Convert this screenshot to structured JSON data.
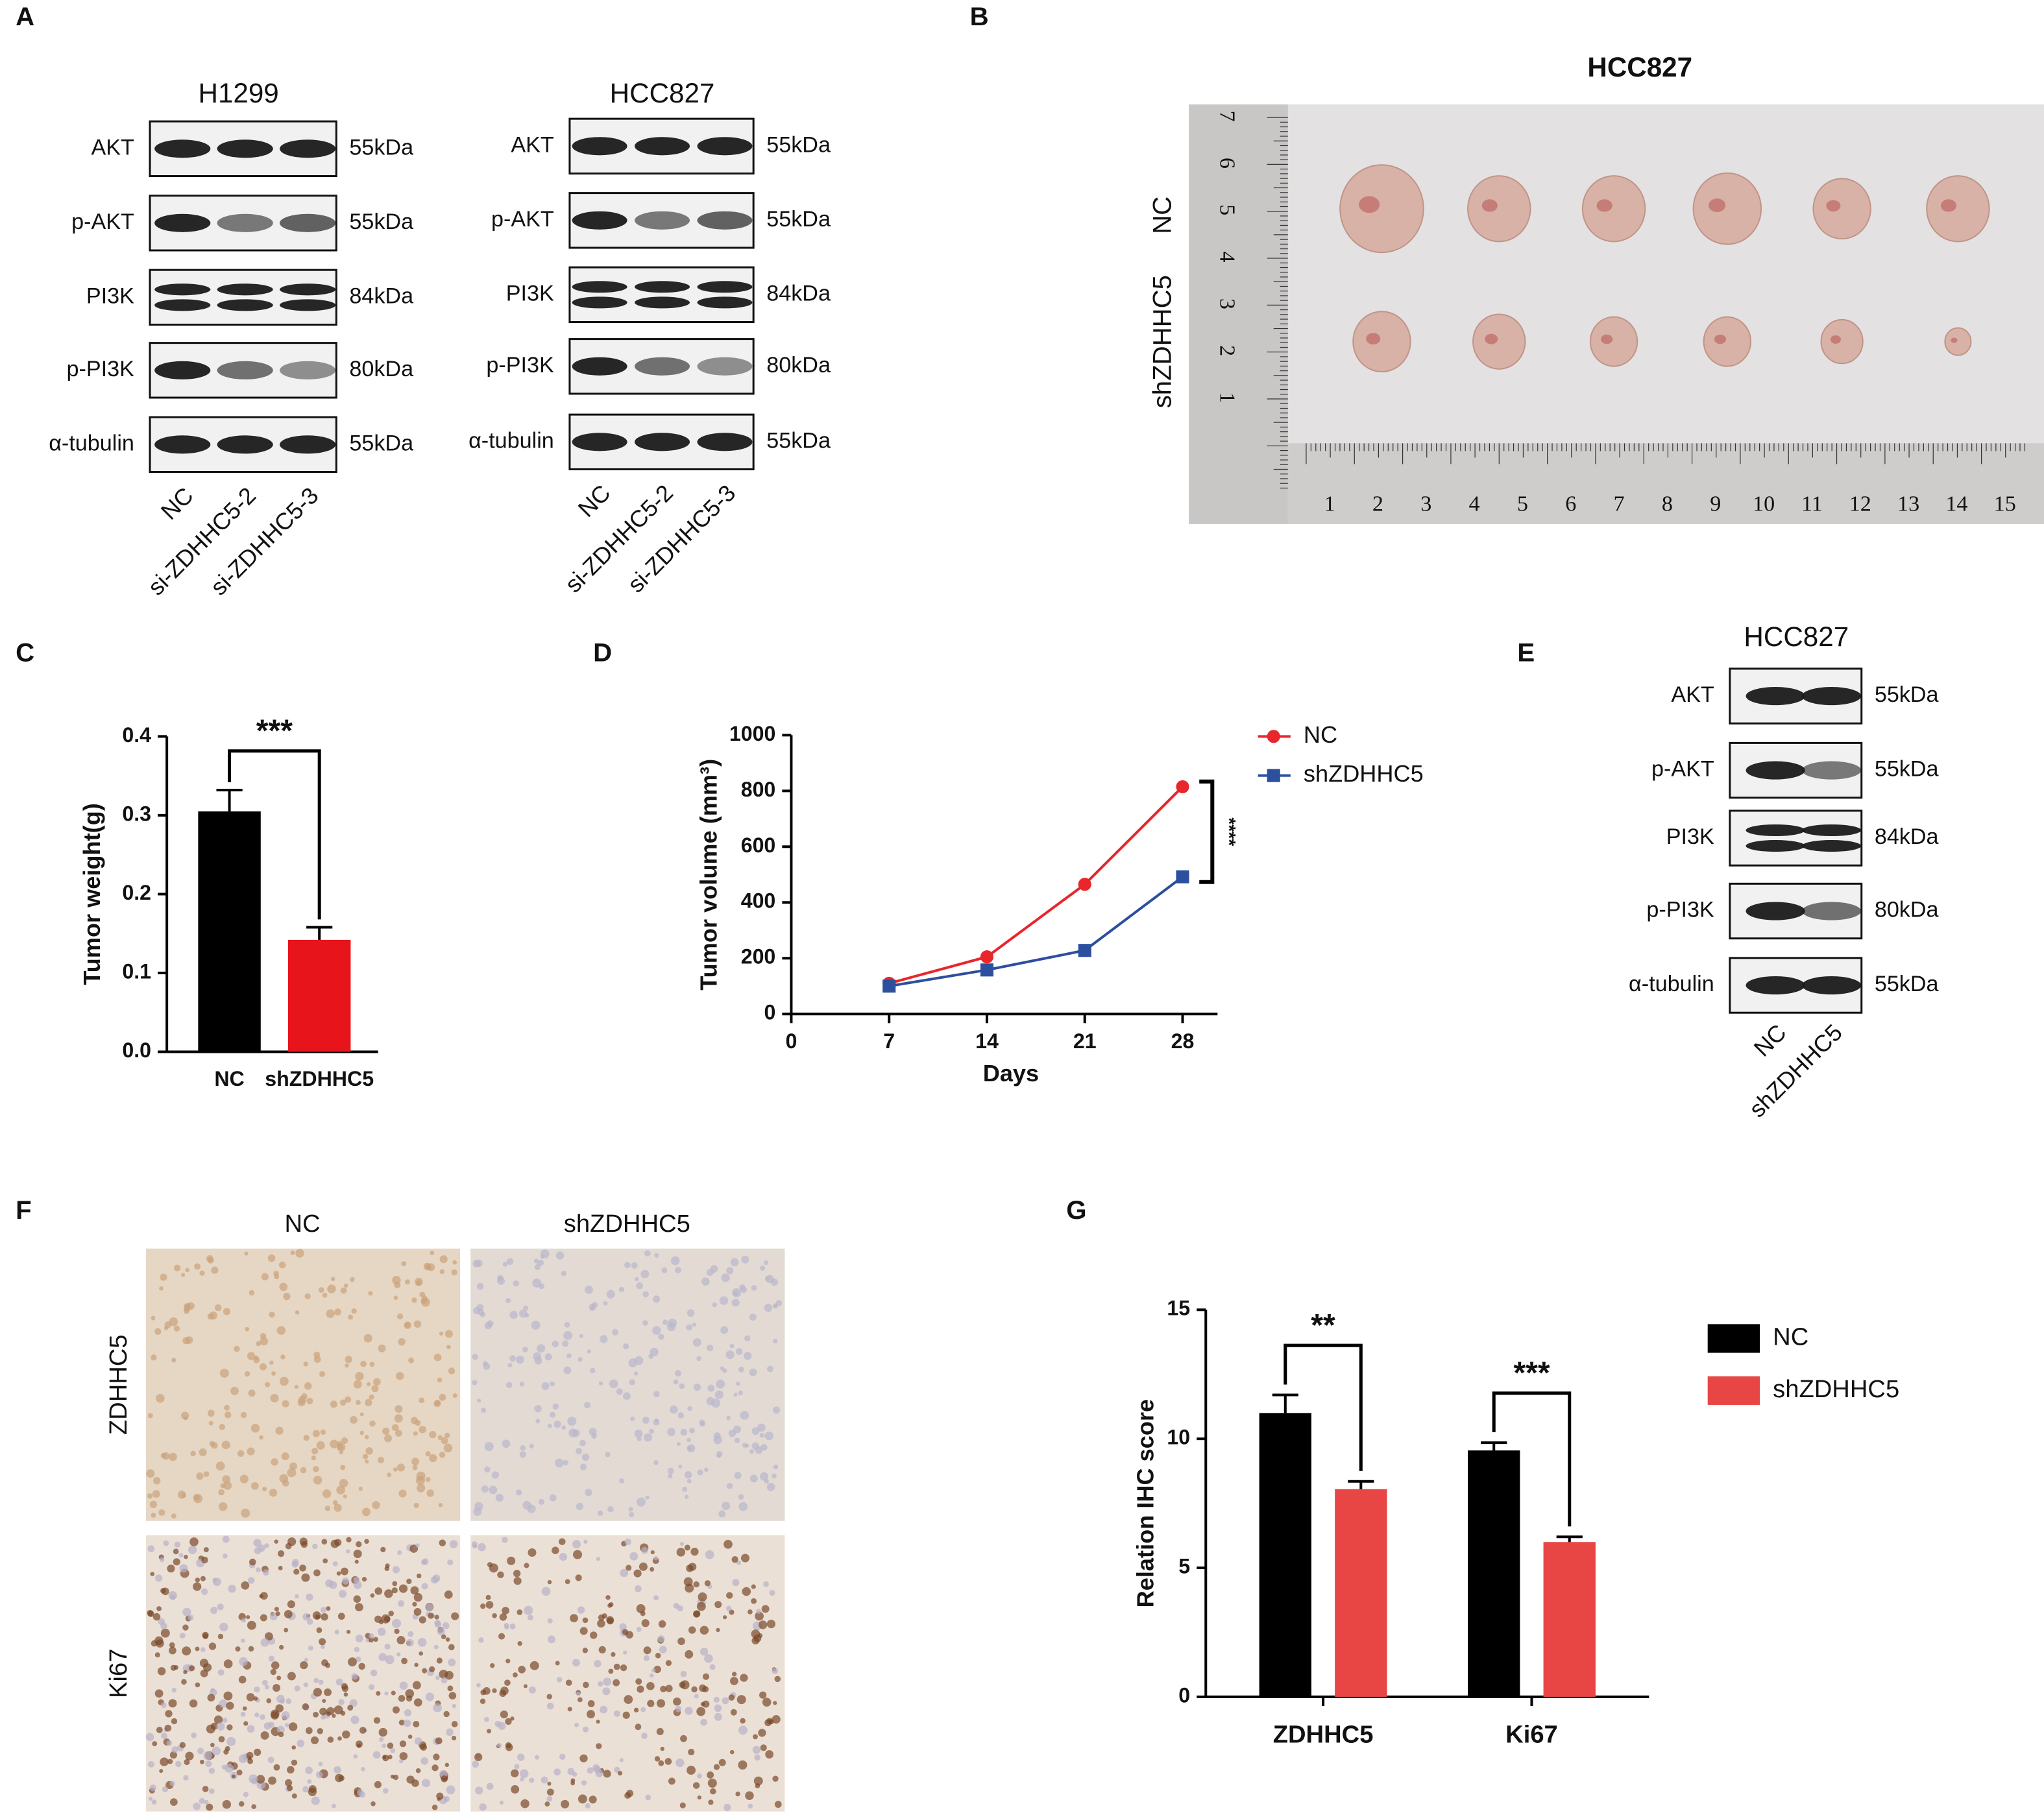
{
  "panel_labels": [
    "A",
    "B",
    "C",
    "D",
    "E",
    "F",
    "G"
  ],
  "blots": [
    {
      "title": "H1299",
      "rows": [
        "AKT",
        "p-AKT",
        "PI3K",
        "p-PI3K",
        "α-tubulin"
      ],
      "sizes": [
        "55kDa",
        "55kDa",
        "84kDa",
        "80kDa",
        "55kDa"
      ],
      "lanes": [
        "NC",
        "si-ZDHHC5-2",
        "si-ZDHHC5-3"
      ]
    },
    {
      "title": "HCC827",
      "rows": [
        "AKT",
        "p-AKT",
        "PI3K",
        "p-PI3K",
        "α-tubulin"
      ],
      "sizes": [
        "55kDa",
        "55kDa",
        "84kDa",
        "80kDa",
        "55kDa"
      ],
      "lanes": [
        "NC",
        "si-ZDHHC5-2",
        "si-ZDHHC5-3"
      ]
    },
    {
      "title": "HCC827",
      "rows": [
        "AKT",
        "p-AKT",
        "PI3K",
        "p-PI3K",
        "α-tubulin"
      ],
      "sizes": [
        "55kDa",
        "55kDa",
        "84kDa",
        "80kDa",
        "55kDa"
      ],
      "lanes": [
        "NC",
        "shZDHHC5"
      ]
    }
  ],
  "photo": {
    "title": "HCC827",
    "rows": [
      "NC",
      "shZDHHC5"
    ],
    "ruler_left": [
      "1",
      "2",
      "3",
      "4",
      "5",
      "6",
      "7"
    ],
    "ruler_bottom": [
      "1",
      "2",
      "3",
      "4",
      "5",
      "6",
      "7",
      "8",
      "9",
      "10",
      "11",
      "12",
      "13",
      "14",
      "15"
    ]
  },
  "ihc": {
    "columns": [
      "NC",
      "shZDHHC5"
    ],
    "rows": [
      "ZDHHC5",
      "Ki67"
    ]
  },
  "chart_data": [
    {
      "type": "bar",
      "ylabel": "Tumor weight(g)",
      "categories": [
        "NC",
        "shZDHHC5"
      ],
      "values": [
        0.305,
        0.142
      ],
      "errors": [
        0.027,
        0.016
      ],
      "colors": [
        "#000000",
        "#e8141b"
      ],
      "ylim": [
        0,
        0.4
      ],
      "yticks": [
        {
          "value": 0,
          "label": "0.0"
        },
        0.1,
        0.2,
        0.3,
        0.4
      ],
      "significance": "***"
    },
    {
      "type": "line",
      "xlabel": "Days",
      "ylabel": "Tumor volume (mm³)",
      "x": [
        7,
        14,
        21,
        28
      ],
      "series": [
        {
          "name": "NC",
          "color": "#e8262c",
          "marker": "circle",
          "values": [
            110,
            205,
            465,
            815
          ]
        },
        {
          "name": "shZDHHC5",
          "color": "#2c4f9e",
          "marker": "square",
          "values": [
            100,
            158,
            228,
            492
          ]
        }
      ],
      "xlim": [
        0,
        30.5
      ],
      "xticks": [
        0,
        7,
        14,
        21,
        28
      ],
      "ylim": [
        0,
        1000
      ],
      "yticks": [
        0,
        200,
        400,
        600,
        800,
        1000
      ],
      "significance": "****"
    },
    {
      "type": "grouped_bar",
      "ylabel": "Relation IHC score",
      "categories": [
        "ZDHHC5",
        "Ki67"
      ],
      "series": [
        {
          "name": "NC",
          "color": "#000000",
          "values": [
            11.0,
            9.55
          ],
          "errors": [
            0.7,
            0.3
          ]
        },
        {
          "name": "shZDHHC5",
          "color": "#e84545",
          "values": [
            8.05,
            6.0
          ],
          "errors": [
            0.3,
            0.2
          ]
        }
      ],
      "ylim": [
        0,
        15
      ],
      "yticks": [
        0,
        5,
        10,
        15
      ],
      "significance": [
        "**",
        "***"
      ]
    }
  ]
}
